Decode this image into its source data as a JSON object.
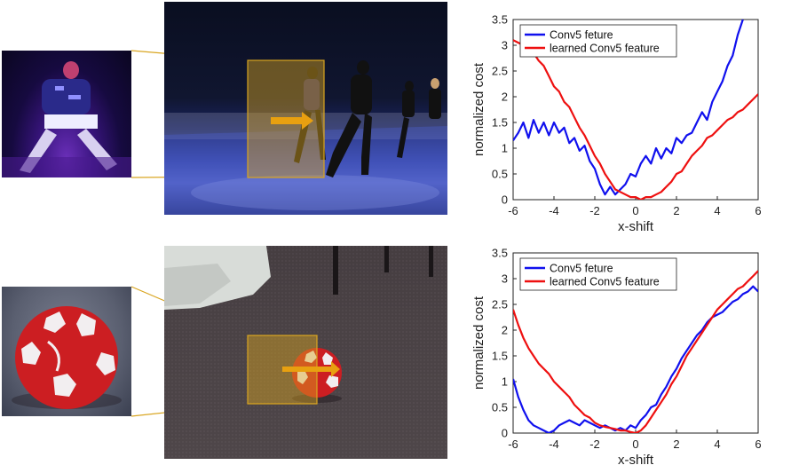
{
  "rows": [
    {
      "scene": "dance-stage",
      "chart_data": {
        "type": "line",
        "title": "",
        "xlabel": "x-shift",
        "ylabel": "normalized cost",
        "xlim": [
          -6,
          6
        ],
        "ylim": [
          0,
          3.5
        ],
        "xticks": [
          "-6",
          "-4",
          "-2",
          "0",
          "2",
          "4",
          "6"
        ],
        "yticks": [
          "0",
          "0.5",
          "1",
          "1.5",
          "2",
          "2.5",
          "3",
          "3.5"
        ],
        "grid": false,
        "legend": "top-left",
        "series": [
          {
            "name": "Conv5 feture",
            "color": "#1010ee",
            "x": [
              -6,
              -5.75,
              -5.5,
              -5.25,
              -5,
              -4.75,
              -4.5,
              -4.25,
              -4,
              -3.75,
              -3.5,
              -3.25,
              -3,
              -2.75,
              -2.5,
              -2.25,
              -2,
              -1.75,
              -1.5,
              -1.25,
              -1,
              -0.75,
              -0.5,
              -0.25,
              0,
              0.25,
              0.5,
              0.75,
              1,
              1.25,
              1.5,
              1.75,
              2,
              2.25,
              2.5,
              2.75,
              3,
              3.25,
              3.5,
              3.75,
              4,
              4.25,
              4.5,
              4.75,
              5,
              5.25
            ],
            "y": [
              1.15,
              1.3,
              1.5,
              1.2,
              1.55,
              1.3,
              1.5,
              1.25,
              1.5,
              1.3,
              1.4,
              1.1,
              1.2,
              0.95,
              1.05,
              0.75,
              0.6,
              0.3,
              0.1,
              0.25,
              0.1,
              0.2,
              0.3,
              0.5,
              0.45,
              0.7,
              0.85,
              0.7,
              1.0,
              0.8,
              1.0,
              0.9,
              1.2,
              1.1,
              1.25,
              1.3,
              1.5,
              1.7,
              1.55,
              1.9,
              2.1,
              2.3,
              2.6,
              2.8,
              3.2,
              3.5
            ]
          },
          {
            "name": "learned Conv5 feature",
            "color": "#ee1010",
            "x": [
              -6,
              -5.75,
              -5.5,
              -5.25,
              -5,
              -4.75,
              -4.5,
              -4.25,
              -4,
              -3.75,
              -3.5,
              -3.25,
              -3,
              -2.75,
              -2.5,
              -2.25,
              -2,
              -1.75,
              -1.5,
              -1.25,
              -1,
              -0.75,
              -0.5,
              -0.25,
              0,
              0.25,
              0.5,
              0.75,
              1,
              1.25,
              1.5,
              1.75,
              2,
              2.25,
              2.5,
              2.75,
              3,
              3.25,
              3.5,
              3.75,
              4,
              4.25,
              4.5,
              4.75,
              5,
              5.25,
              5.5,
              5.75,
              6
            ],
            "y": [
              3.1,
              3.05,
              3.0,
              2.95,
              2.85,
              2.7,
              2.6,
              2.4,
              2.2,
              2.1,
              1.9,
              1.8,
              1.6,
              1.4,
              1.25,
              1.05,
              0.85,
              0.7,
              0.5,
              0.35,
              0.2,
              0.15,
              0.1,
              0.05,
              0.05,
              0.0,
              0.05,
              0.05,
              0.1,
              0.15,
              0.25,
              0.35,
              0.5,
              0.55,
              0.7,
              0.85,
              0.95,
              1.05,
              1.2,
              1.25,
              1.35,
              1.45,
              1.55,
              1.6,
              1.7,
              1.75,
              1.85,
              1.95,
              2.05
            ]
          }
        ]
      }
    },
    {
      "scene": "soccer-ball",
      "chart_data": {
        "type": "line",
        "title": "",
        "xlabel": "x-shift",
        "ylabel": "normalized cost",
        "xlim": [
          -6,
          6
        ],
        "ylim": [
          0,
          3.5
        ],
        "xticks": [
          "-6",
          "-4",
          "-2",
          "0",
          "2",
          "4",
          "6"
        ],
        "yticks": [
          "0",
          "0.5",
          "1",
          "1.5",
          "2",
          "2.5",
          "3",
          "3.5"
        ],
        "grid": false,
        "legend": "top-left",
        "series": [
          {
            "name": "Conv5 feture",
            "color": "#1010ee",
            "x": [
              -6,
              -5.75,
              -5.5,
              -5.25,
              -5,
              -4.75,
              -4.5,
              -4.25,
              -4,
              -3.75,
              -3.5,
              -3.25,
              -3,
              -2.75,
              -2.5,
              -2.25,
              -2,
              -1.75,
              -1.5,
              -1.25,
              -1,
              -0.75,
              -0.5,
              -0.25,
              0,
              0.25,
              0.5,
              0.75,
              1,
              1.25,
              1.5,
              1.75,
              2,
              2.25,
              2.5,
              2.75,
              3,
              3.25,
              3.5,
              3.75,
              4,
              4.25,
              4.5,
              4.75,
              5,
              5.25,
              5.5,
              5.75,
              6
            ],
            "y": [
              1.05,
              0.7,
              0.45,
              0.25,
              0.15,
              0.1,
              0.05,
              0.0,
              0.05,
              0.15,
              0.2,
              0.25,
              0.2,
              0.15,
              0.25,
              0.2,
              0.15,
              0.1,
              0.15,
              0.1,
              0.05,
              0.1,
              0.05,
              0.15,
              0.1,
              0.25,
              0.35,
              0.5,
              0.55,
              0.75,
              0.9,
              1.1,
              1.25,
              1.45,
              1.6,
              1.75,
              1.9,
              2.0,
              2.15,
              2.25,
              2.3,
              2.35,
              2.45,
              2.55,
              2.6,
              2.7,
              2.75,
              2.85,
              2.75
            ]
          },
          {
            "name": "learned Conv5 feature",
            "color": "#ee1010",
            "x": [
              -6,
              -5.75,
              -5.5,
              -5.25,
              -5,
              -4.75,
              -4.5,
              -4.25,
              -4,
              -3.75,
              -3.5,
              -3.25,
              -3,
              -2.75,
              -2.5,
              -2.25,
              -2,
              -1.75,
              -1.5,
              -1.25,
              -1,
              -0.75,
              -0.5,
              -0.25,
              0,
              0.25,
              0.5,
              0.75,
              1,
              1.25,
              1.5,
              1.75,
              2,
              2.25,
              2.5,
              2.75,
              3,
              3.25,
              3.5,
              3.75,
              4,
              4.25,
              4.5,
              4.75,
              5,
              5.25,
              5.5,
              5.75,
              6
            ],
            "y": [
              2.4,
              2.1,
              1.85,
              1.65,
              1.5,
              1.35,
              1.25,
              1.15,
              1.0,
              0.9,
              0.8,
              0.7,
              0.55,
              0.45,
              0.35,
              0.3,
              0.2,
              0.15,
              0.12,
              0.1,
              0.08,
              0.05,
              0.05,
              0.02,
              0.0,
              0.05,
              0.15,
              0.3,
              0.45,
              0.6,
              0.75,
              0.95,
              1.1,
              1.3,
              1.5,
              1.65,
              1.8,
              1.95,
              2.1,
              2.25,
              2.4,
              2.5,
              2.6,
              2.7,
              2.8,
              2.85,
              2.95,
              3.05,
              3.15
            ]
          }
        ]
      }
    }
  ]
}
